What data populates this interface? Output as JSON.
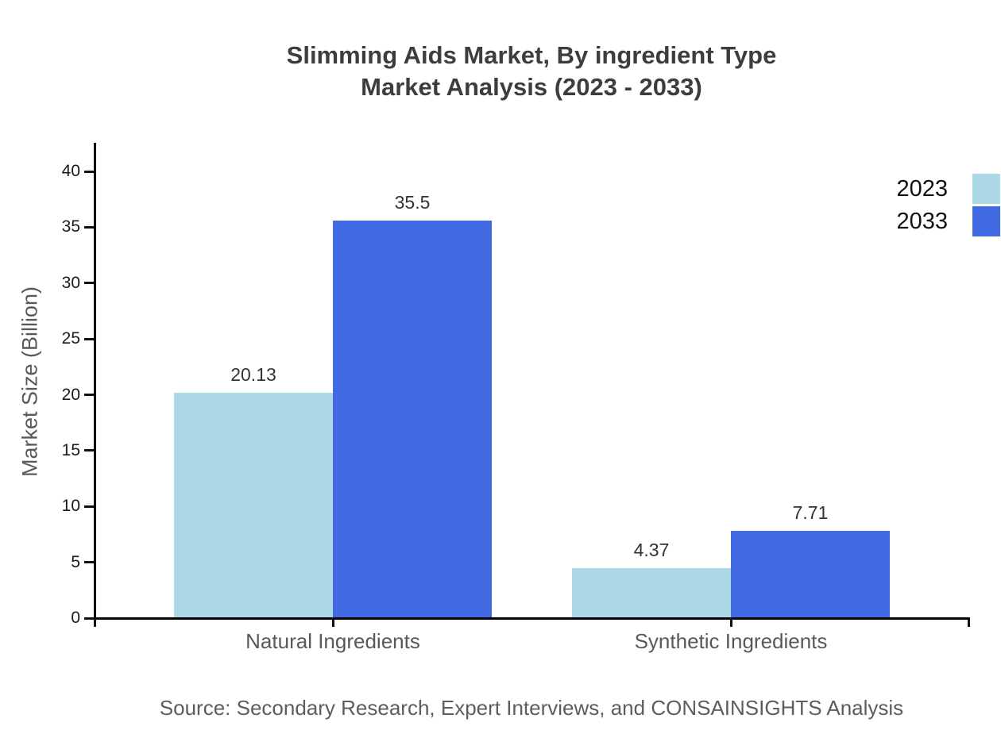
{
  "chart_data": {
    "type": "bar",
    "title": "Slimming Aids Market, By ingredient Type Market Analysis (2023 - 2033)",
    "title_lines": [
      "Slimming Aids Market, By ingredient Type",
      "Market Analysis (2023 - 2033)"
    ],
    "categories": [
      "Natural Ingredients",
      "Synthetic Ingredients"
    ],
    "series": [
      {
        "name": "2023",
        "color": "#ADD8E6",
        "values": [
          20.13,
          4.37
        ],
        "labels": [
          "20.13",
          "4.37"
        ]
      },
      {
        "name": "2033",
        "color": "#4169E1",
        "values": [
          35.5,
          7.71
        ],
        "labels": [
          "35.5",
          "7.71"
        ]
      }
    ],
    "xlabel": "",
    "ylabel": "Market Size (Billion)",
    "yticks": [
      "0",
      "5",
      "10",
      "15",
      "20",
      "25",
      "30",
      "35",
      "40"
    ],
    "ytick_values": [
      0,
      5,
      10,
      15,
      20,
      25,
      30,
      35,
      40
    ],
    "ylim": [
      0,
      42.6
    ],
    "grid": false,
    "legend_position": "top-right",
    "source": "Source: Secondary Research, Expert Interviews, and CONSAINSIGHTS Analysis",
    "colors": {
      "series_2023": "#ADD8E6",
      "series_2033": "#4169E1",
      "axis": "#000000",
      "title_text": "#3d3d3d",
      "label_text": "#595959",
      "background": "#ffffff"
    }
  }
}
